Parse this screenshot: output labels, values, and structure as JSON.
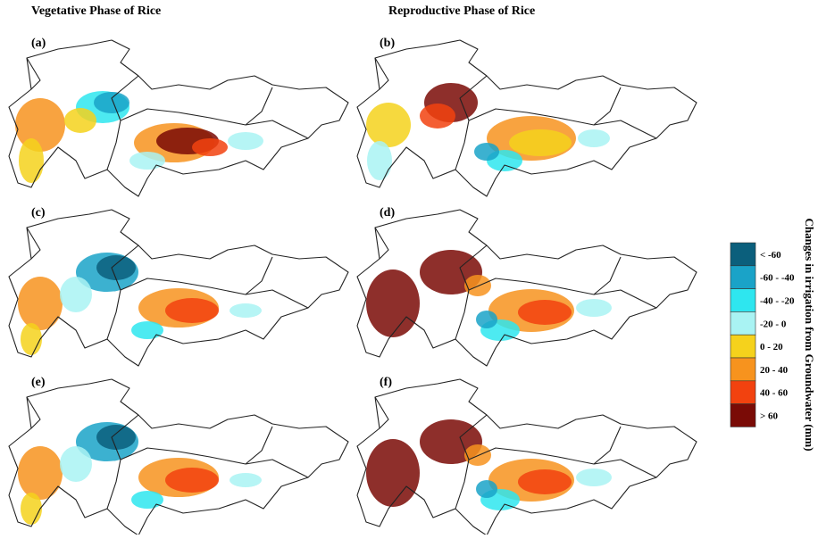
{
  "column_titles": [
    "Vegetative Phase of Rice",
    "Reproductive Phase of Rice"
  ],
  "panels": [
    {
      "label": "(a)"
    },
    {
      "label": "(b)"
    },
    {
      "label": "(c)"
    },
    {
      "label": "(d)"
    },
    {
      "label": "(e)"
    },
    {
      "label": "(f)"
    }
  ],
  "legend": {
    "title": "Changes in irrigation from Groundwater (mm)",
    "items": [
      {
        "label": "< -60",
        "color": "#0b5f7c"
      },
      {
        "label": "-60 - -40",
        "color": "#1aa3c8"
      },
      {
        "label": "-40 - -20",
        "color": "#2ee6ef"
      },
      {
        "label": "-20 - 0",
        "color": "#a9f3f3"
      },
      {
        "label": "0 - 20",
        "color": "#f5d21c"
      },
      {
        "label": "20 - 40",
        "color": "#f7931e"
      },
      {
        "label": "40 - 60",
        "color": "#f2420f"
      },
      {
        "label": "> 60",
        "color": "#7a0b06"
      }
    ]
  }
}
